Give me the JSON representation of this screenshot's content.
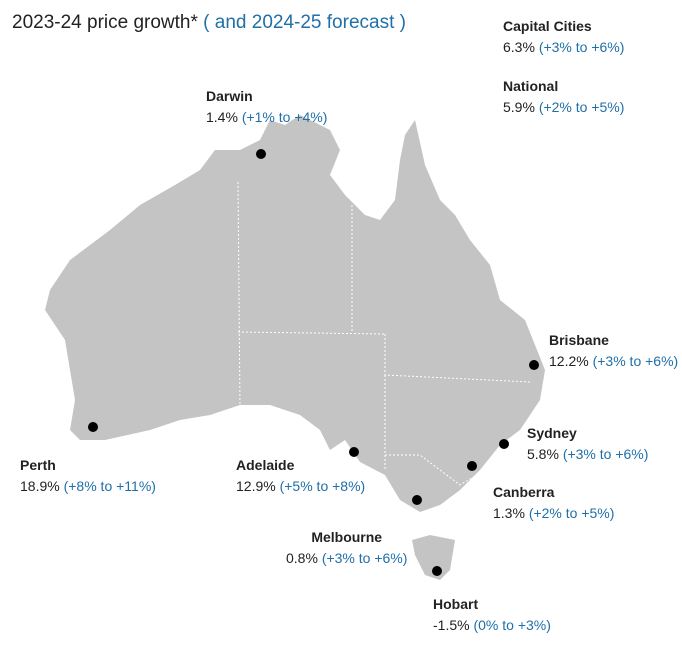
{
  "title": "2023-24 price growth*",
  "subtitle": "( and 2024-25 forecast )",
  "summary": [
    {
      "name": "Capital Cities",
      "growth": "6.3%",
      "forecast": "(+3% to +6%)"
    },
    {
      "name": "National",
      "growth": "5.9%",
      "forecast": "(+2% to +5%)"
    }
  ],
  "cities": [
    {
      "name": "Darwin",
      "growth": "1.4%",
      "forecast": "(+1% to +4%)"
    },
    {
      "name": "Brisbane",
      "growth": "12.2%",
      "forecast": "(+3% to +6%)"
    },
    {
      "name": "Sydney",
      "growth": "5.8%",
      "forecast": "(+3% to +6%)"
    },
    {
      "name": "Canberra",
      "growth": "1.3%",
      "forecast": "(+2% to +5%)"
    },
    {
      "name": "Perth",
      "growth": "18.9%",
      "forecast": "(+8% to +11%)"
    },
    {
      "name": "Adelaide",
      "growth": "12.9%",
      "forecast": "(+5% to +8%)"
    },
    {
      "name": "Melbourne",
      "growth": "0.8%",
      "forecast": "(+3% to +6%)"
    },
    {
      "name": "Hobart",
      "growth": "-1.5%",
      "forecast": "(0% to +3%)"
    }
  ]
}
